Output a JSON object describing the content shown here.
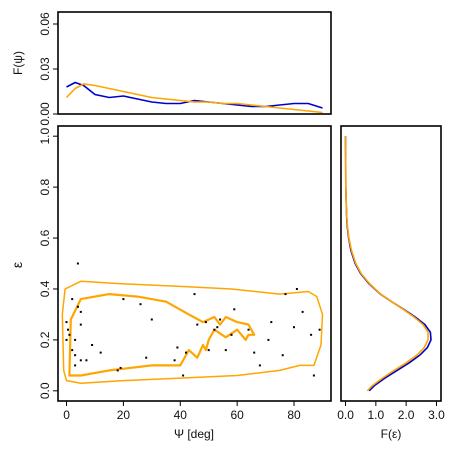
{
  "chart_data": [
    {
      "id": "top",
      "type": "line",
      "xlabel": "",
      "ylabel": "F(ψ)",
      "xlim": [
        -3,
        93
      ],
      "ylim": [
        0,
        0.068
      ],
      "yticks": [
        0.0,
        0.03,
        0.06
      ],
      "ytick_labels": [
        "0.00",
        "0.03",
        "0.06"
      ],
      "series": [
        {
          "color": "#0000cc",
          "x": [
            0,
            3,
            6,
            10,
            15,
            20,
            25,
            30,
            35,
            40,
            45,
            50,
            55,
            60,
            65,
            70,
            75,
            80,
            85,
            90
          ],
          "y": [
            0.018,
            0.021,
            0.019,
            0.013,
            0.011,
            0.012,
            0.01,
            0.008,
            0.007,
            0.007,
            0.009,
            0.008,
            0.007,
            0.006,
            0.005,
            0.005,
            0.006,
            0.007,
            0.007,
            0.004
          ]
        },
        {
          "color": "#ffa500",
          "x": [
            0,
            3,
            6,
            10,
            15,
            20,
            25,
            30,
            35,
            40,
            45,
            50,
            55,
            60,
            65,
            70,
            75,
            80,
            85,
            90
          ],
          "y": [
            0.011,
            0.017,
            0.02,
            0.019,
            0.017,
            0.015,
            0.013,
            0.011,
            0.01,
            0.009,
            0.008,
            0.008,
            0.007,
            0.007,
            0.006,
            0.005,
            0.004,
            0.003,
            0.002,
            0.001
          ]
        }
      ]
    },
    {
      "id": "main",
      "type": "scatter",
      "xlabel": "Ψ [deg]",
      "ylabel": "ε",
      "xlim": [
        -3,
        93
      ],
      "ylim": [
        -0.04,
        1.04
      ],
      "xticks": [
        0,
        20,
        40,
        60,
        80
      ],
      "xtick_labels": [
        "0",
        "20",
        "40",
        "60",
        "80"
      ],
      "yticks": [
        0.0,
        0.2,
        0.4,
        0.6,
        0.8,
        1.0
      ],
      "ytick_labels": [
        "0.0",
        "0.2",
        "0.4",
        "0.6",
        "0.8",
        "1.0"
      ],
      "points": [
        [
          0,
          0.27
        ],
        [
          0,
          0.2
        ],
        [
          0.5,
          0.24
        ],
        [
          1,
          0.22
        ],
        [
          2,
          0.36
        ],
        [
          2,
          0.16
        ],
        [
          3,
          0.2
        ],
        [
          3,
          0.14
        ],
        [
          3,
          0.1
        ],
        [
          4,
          0.5
        ],
        [
          4,
          0.33
        ],
        [
          5,
          0.31
        ],
        [
          5,
          0.26
        ],
        [
          5,
          0.12
        ],
        [
          7,
          0.12
        ],
        [
          9,
          0.18
        ],
        [
          12,
          0.15
        ],
        [
          18,
          0.08
        ],
        [
          19,
          0.09
        ],
        [
          20,
          0.36
        ],
        [
          26,
          0.34
        ],
        [
          28,
          0.13
        ],
        [
          30,
          0.28
        ],
        [
          38,
          0.12
        ],
        [
          39,
          0.17
        ],
        [
          41,
          0.06
        ],
        [
          42,
          0.15
        ],
        [
          45,
          0.38
        ],
        [
          46,
          0.26
        ],
        [
          49,
          0.27
        ],
        [
          50,
          0.16
        ],
        [
          52,
          0.24
        ],
        [
          53,
          0.25
        ],
        [
          54,
          0.28
        ],
        [
          56,
          0.16
        ],
        [
          58,
          0.22
        ],
        [
          59,
          0.32
        ],
        [
          64,
          0.24
        ],
        [
          66,
          0.15
        ],
        [
          68,
          0.1
        ],
        [
          71,
          0.2
        ],
        [
          72,
          0.27
        ],
        [
          76,
          0.14
        ],
        [
          77,
          0.38
        ],
        [
          80,
          0.25
        ],
        [
          81,
          0.4
        ],
        [
          83,
          0.31
        ],
        [
          86,
          0.22
        ],
        [
          87,
          0.06
        ],
        [
          89,
          0.24
        ]
      ],
      "contours": [
        {
          "color": "#ffa500",
          "width": 1.5,
          "points": [
            [
              -1,
              0.08
            ],
            [
              -1.5,
              0.3
            ],
            [
              -0.5,
              0.4
            ],
            [
              5,
              0.43
            ],
            [
              20,
              0.42
            ],
            [
              40,
              0.41
            ],
            [
              58,
              0.4
            ],
            [
              75,
              0.38
            ],
            [
              85,
              0.39
            ],
            [
              88,
              0.37
            ],
            [
              90,
              0.3
            ],
            [
              89.5,
              0.18
            ],
            [
              87,
              0.1
            ],
            [
              82,
              0.1
            ],
            [
              75,
              0.08
            ],
            [
              60,
              0.06
            ],
            [
              40,
              0.05
            ],
            [
              20,
              0.04
            ],
            [
              5,
              0.03
            ],
            [
              0,
              0.04
            ],
            [
              -1,
              0.08
            ]
          ]
        },
        {
          "color": "#ffa500",
          "width": 2.2,
          "points": [
            [
              1,
              0.06
            ],
            [
              1.5,
              0.28
            ],
            [
              5,
              0.36
            ],
            [
              15,
              0.38
            ],
            [
              25,
              0.37
            ],
            [
              35,
              0.35
            ],
            [
              43,
              0.3
            ],
            [
              48,
              0.27
            ],
            [
              52,
              0.29
            ],
            [
              54,
              0.26
            ],
            [
              56,
              0.29
            ],
            [
              60,
              0.27
            ],
            [
              64,
              0.26
            ],
            [
              66,
              0.22
            ],
            [
              64,
              0.22
            ],
            [
              63,
              0.2
            ],
            [
              60,
              0.24
            ],
            [
              56,
              0.21
            ],
            [
              52,
              0.24
            ],
            [
              50,
              0.2
            ],
            [
              49,
              0.16
            ],
            [
              48,
              0.18
            ],
            [
              46,
              0.13
            ],
            [
              43,
              0.16
            ],
            [
              40,
              0.1
            ],
            [
              30,
              0.1
            ],
            [
              15,
              0.08
            ],
            [
              5,
              0.06
            ],
            [
              1,
              0.06
            ]
          ]
        }
      ]
    },
    {
      "id": "right",
      "type": "line",
      "xlabel": "F(ε)",
      "ylabel": "",
      "xlim": [
        -0.15,
        3.15
      ],
      "ylim": [
        -0.04,
        1.04
      ],
      "xticks": [
        0,
        1,
        2,
        3
      ],
      "xtick_labels": [
        "0.0",
        "1.0",
        "2.0",
        "3.0"
      ],
      "series": [
        {
          "color": "#0000cc",
          "y": [
            0,
            0.02,
            0.05,
            0.08,
            0.11,
            0.14,
            0.17,
            0.2,
            0.23,
            0.26,
            0.29,
            0.32,
            0.35,
            0.38,
            0.42,
            0.46,
            0.5,
            0.55,
            0.6,
            0.65,
            0.7,
            0.8,
            0.9,
            1.0
          ],
          "x": [
            0.78,
            0.95,
            1.3,
            1.7,
            2.1,
            2.45,
            2.7,
            2.82,
            2.8,
            2.62,
            2.3,
            1.92,
            1.52,
            1.15,
            0.78,
            0.5,
            0.32,
            0.18,
            0.1,
            0.05,
            0.03,
            0.01,
            0.005,
            0.0
          ]
        },
        {
          "color": "#ffa500",
          "y": [
            0,
            0.02,
            0.05,
            0.08,
            0.11,
            0.14,
            0.17,
            0.2,
            0.23,
            0.26,
            0.29,
            0.32,
            0.35,
            0.38,
            0.42,
            0.46,
            0.5,
            0.55,
            0.6,
            0.65,
            0.7,
            0.8,
            0.9,
            1.0
          ],
          "x": [
            0.72,
            0.88,
            1.22,
            1.6,
            2.0,
            2.35,
            2.6,
            2.72,
            2.72,
            2.56,
            2.26,
            1.9,
            1.52,
            1.16,
            0.8,
            0.52,
            0.34,
            0.2,
            0.11,
            0.06,
            0.03,
            0.01,
            0.005,
            0.0
          ]
        }
      ]
    }
  ]
}
